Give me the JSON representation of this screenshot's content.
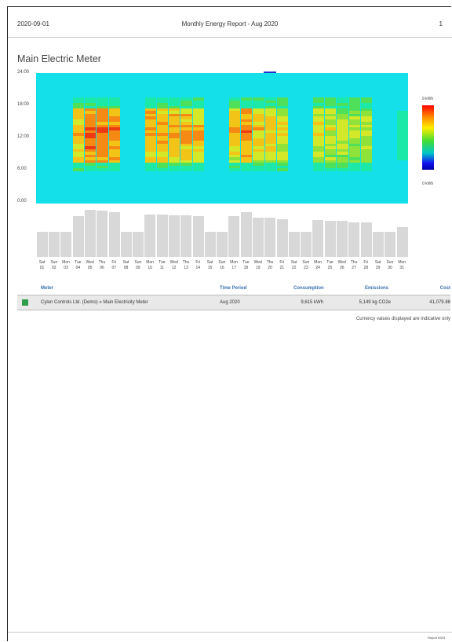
{
  "header": {
    "date": "2020-09-01",
    "title": "Monthly Energy Report - Aug 2020",
    "page": "1"
  },
  "section": {
    "title": "Main Electric Meter"
  },
  "heatmap": {
    "y_ticks": [
      "24:00",
      "18:00",
      "12:00",
      "6:00",
      "0:00"
    ],
    "legend_max": "9 kWh",
    "legend_min": "0 kWh"
  },
  "chart_data": {
    "type": "bar",
    "categories": [
      "Sat 01",
      "Sun 02",
      "Mon 03",
      "Tue 04",
      "Wed 05",
      "Thu 06",
      "Fri 07",
      "Sat 08",
      "Sun 09",
      "Mon 10",
      "Tue 11",
      "Wed 12",
      "Thu 13",
      "Fri 14",
      "Sat 15",
      "Sun 16",
      "Mon 17",
      "Tue 18",
      "Wed 19",
      "Thu 20",
      "Fri 21",
      "Sat 22",
      "Sun 23",
      "Mon 24",
      "Tue 25",
      "Wed 26",
      "Thu 27",
      "Fri 28",
      "Sat 29",
      "Sun 30",
      "Mon 31"
    ],
    "weekdays": [
      "Sat",
      "Sun",
      "Mon",
      "Tue",
      "Wed",
      "Thu",
      "Fri",
      "Sat",
      "Sun",
      "Mon",
      "Tue",
      "Wed",
      "Thu",
      "Fri",
      "Sat",
      "Sun",
      "Mon",
      "Tue",
      "Wed",
      "Thu",
      "Fri",
      "Sat",
      "Sun",
      "Mon",
      "Tue",
      "Wed",
      "Thu",
      "Fri",
      "Sat",
      "Sun",
      "Mon"
    ],
    "days": [
      "01",
      "02",
      "03",
      "04",
      "05",
      "06",
      "07",
      "08",
      "09",
      "10",
      "11",
      "12",
      "13",
      "14",
      "15",
      "16",
      "17",
      "18",
      "19",
      "20",
      "21",
      "22",
      "23",
      "24",
      "25",
      "26",
      "27",
      "28",
      "29",
      "30",
      "31"
    ],
    "values": [
      0.49,
      0.49,
      0.49,
      0.79,
      0.91,
      0.89,
      0.86,
      0.49,
      0.49,
      0.82,
      0.82,
      0.81,
      0.81,
      0.79,
      0.49,
      0.49,
      0.79,
      0.86,
      0.76,
      0.76,
      0.73,
      0.49,
      0.49,
      0.71,
      0.69,
      0.69,
      0.66,
      0.67,
      0.49,
      0.49,
      0.57
    ]
  },
  "table": {
    "headers": {
      "meter": "Meter",
      "period": "Time Period",
      "consumption": "Consumption",
      "emissions": "Emissions",
      "cost": "Cost"
    },
    "row": {
      "meter": "Cylon Controls Ltd. (Demo) » Main Electricity Meter",
      "period": "Aug 2020",
      "consumption_value": "9,615",
      "consumption_unit": "kWh",
      "emissions_value": "5,149",
      "emissions_unit": "kg CO2e",
      "cost": "41,079.88",
      "swatch_color": "#2e9e4a"
    },
    "note": "Currency values displayed are indicative only"
  },
  "footer": {
    "text": "Report 6393"
  }
}
